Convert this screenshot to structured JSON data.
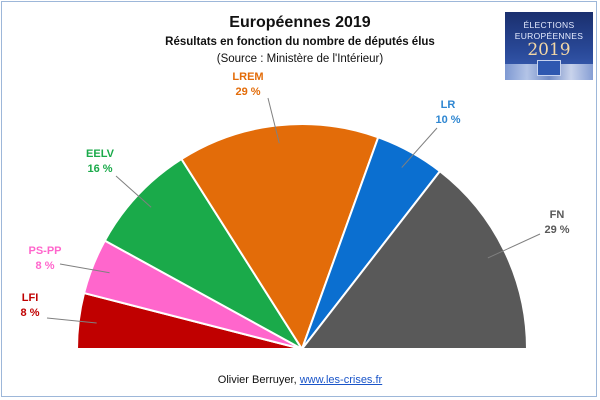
{
  "title": "Européennes 2019",
  "subtitle": "Résultats en fonction du nombre de députés élus",
  "source": "(Source : Ministère de l'Intérieur)",
  "footer": {
    "author": "Olivier Berruyer, ",
    "link": "www.les-crises.fr"
  },
  "logo": {
    "line1": "ÉLECTIONS",
    "line2": "EUROPÉENNES",
    "year": "2019"
  },
  "chart_data": {
    "type": "pie",
    "variant": "half-donut (hemicycle)",
    "title": "Européennes 2019",
    "subtitle": "Résultats en fonction du nombre de députés élus",
    "slices": [
      {
        "name": "LFI",
        "value": 8,
        "label": "8 %",
        "color": "#c00000"
      },
      {
        "name": "PS-PP",
        "value": 8,
        "label": "8 %",
        "color": "#ff66cc"
      },
      {
        "name": "EELV",
        "value": 16,
        "label": "16 %",
        "color": "#1aaa4a"
      },
      {
        "name": "LREM",
        "value": 29,
        "label": "29 %",
        "color": "#e36c09"
      },
      {
        "name": "LR",
        "value": 10,
        "label": "10 %",
        "color": "#0b6fd0"
      },
      {
        "name": "FN",
        "value": 29,
        "label": "29 %",
        "color": "#595959"
      }
    ],
    "label_colors": {
      "LFI": "#c00000",
      "PS-PP": "#ff66cc",
      "EELV": "#1aaa4a",
      "LREM": "#e36c09",
      "LR": "#2e86d1",
      "FN": "#595959"
    }
  }
}
